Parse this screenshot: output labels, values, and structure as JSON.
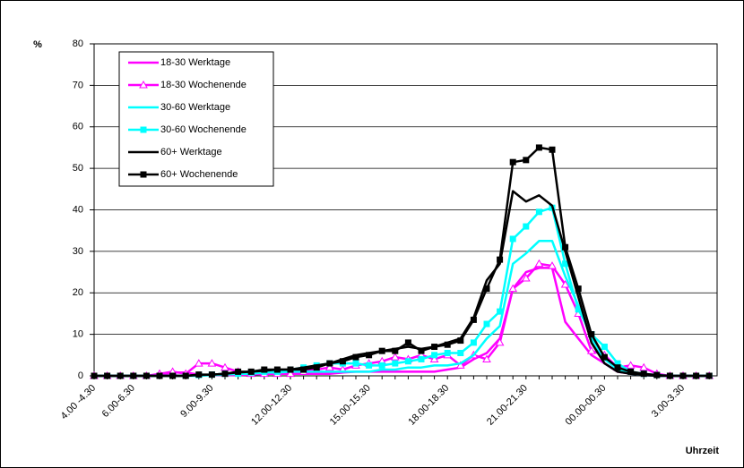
{
  "chart_data": {
    "type": "line",
    "y_label": "%",
    "x_label": "Uhrzeit",
    "categories": [
      "4.00 -4.30",
      null,
      null,
      "6.00-6.30",
      null,
      null,
      null,
      null,
      null,
      "9.00-9.30",
      null,
      null,
      null,
      null,
      null,
      "12.00-12.30",
      null,
      null,
      null,
      null,
      null,
      "15.00-15.30",
      null,
      null,
      null,
      null,
      null,
      "18.00-18.30",
      null,
      null,
      null,
      null,
      null,
      "21.00-21.30",
      null,
      null,
      null,
      null,
      null,
      "00.00-00.30",
      null,
      null,
      null,
      null,
      null,
      "3.00-3.30",
      null,
      null
    ],
    "ylim": [
      0,
      80
    ],
    "yticks": [
      0,
      10,
      20,
      30,
      40,
      50,
      60,
      70,
      80
    ],
    "grid": true,
    "legend": "upper left",
    "series": [
      {
        "name": "18-30 Werktage",
        "color": "#ff00ff",
        "marker": "none",
        "values": [
          0,
          0,
          0,
          0,
          0,
          0.3,
          0.8,
          0.8,
          0.3,
          0.2,
          0.2,
          0.2,
          0.3,
          0.5,
          0.5,
          0.5,
          0.5,
          0.5,
          0.5,
          0.8,
          1,
          1,
          1,
          1,
          1,
          1,
          1,
          1.5,
          2,
          4,
          5.5,
          9,
          21,
          25,
          26,
          26,
          13,
          9,
          5,
          3,
          1,
          0.5,
          0.2,
          0,
          0,
          0,
          0,
          0
        ]
      },
      {
        "name": "18-30 Wochenende",
        "color": "#ff00ff",
        "marker": "triangle",
        "values": [
          0,
          0,
          0,
          0,
          0,
          0.5,
          1,
          0.5,
          3,
          3,
          2,
          1,
          0.5,
          0.5,
          0.5,
          0.5,
          1,
          1.5,
          2,
          1.5,
          2.5,
          3,
          3.5,
          4.5,
          4,
          5,
          4,
          5,
          2.5,
          5,
          4,
          8,
          21,
          23.5,
          27,
          26.5,
          22,
          15,
          6,
          5,
          2,
          2.5,
          2,
          0.5,
          0,
          0,
          0,
          0
        ]
      },
      {
        "name": "30-60 Werktage",
        "color": "#00ffff",
        "marker": "none",
        "values": [
          0,
          0,
          0,
          0,
          0,
          0,
          0,
          0,
          0,
          0.2,
          0.3,
          0.5,
          0.5,
          0.8,
          0.8,
          1,
          1,
          1,
          1,
          1,
          1,
          1,
          1.5,
          1.5,
          2,
          2,
          2.5,
          2.5,
          3,
          5,
          9,
          12,
          27,
          29.5,
          32.5,
          32.5,
          24,
          17,
          9,
          4,
          1.5,
          0.5,
          0.2,
          0,
          0,
          0,
          0,
          0
        ]
      },
      {
        "name": "30-60 Wochenende",
        "color": "#00ffff",
        "marker": "square",
        "values": [
          0,
          0,
          0,
          0,
          0,
          0,
          0,
          0,
          0.2,
          0.3,
          0.5,
          0.5,
          0.8,
          1,
          1,
          1.5,
          2,
          2.5,
          3,
          3,
          3,
          2.5,
          2.5,
          3,
          3.5,
          4,
          5,
          5.5,
          5.5,
          8,
          12.5,
          15.5,
          33,
          36,
          39.5,
          40.5,
          27,
          16,
          10,
          7,
          3,
          1,
          0.5,
          0.2,
          0,
          0,
          0,
          0
        ]
      },
      {
        "name": "60+ Werktage",
        "color": "#000000",
        "marker": "none",
        "values": [
          0,
          0,
          0,
          0,
          0,
          0,
          0,
          0,
          0.2,
          0.3,
          0.5,
          0.8,
          1,
          1.2,
          1.5,
          1.5,
          2,
          2.5,
          3,
          4,
          5,
          5.5,
          6,
          6.5,
          7,
          6.5,
          7,
          8,
          9,
          14,
          23,
          27,
          44.5,
          42,
          43.5,
          41,
          30,
          19,
          8,
          3,
          1,
          0.5,
          0.2,
          0,
          0,
          0,
          0,
          0
        ]
      },
      {
        "name": "60+ Wochenende",
        "color": "#000000",
        "marker": "square",
        "values": [
          0,
          0,
          0,
          0,
          0,
          0,
          0,
          0,
          0.3,
          0.3,
          0.5,
          1,
          1,
          1.5,
          1.5,
          1.5,
          1.5,
          2,
          3,
          3.5,
          4.5,
          5,
          6,
          6,
          8,
          6,
          7,
          7.5,
          8.5,
          13.5,
          21,
          28,
          51.5,
          52,
          55,
          54.5,
          31,
          21,
          10,
          4.5,
          2,
          1,
          0.5,
          0.2,
          0,
          0,
          0,
          0
        ]
      }
    ]
  }
}
